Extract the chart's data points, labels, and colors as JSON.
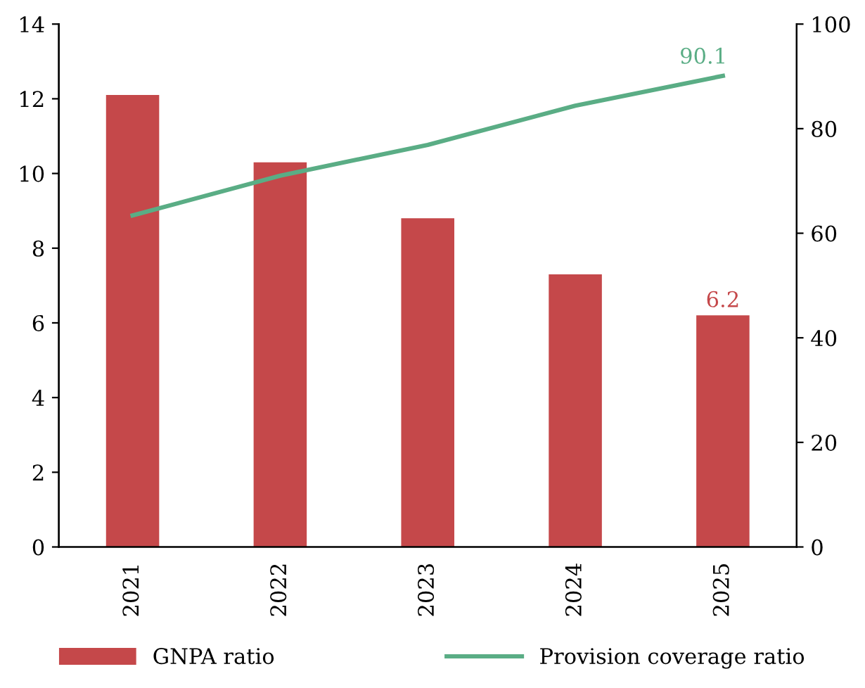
{
  "chart_data": {
    "type": "bar",
    "categories": [
      "2021",
      "2022",
      "2023",
      "2024",
      "2025"
    ],
    "series": [
      {
        "name": "GNPA ratio",
        "color": "#c5484a",
        "values": [
          12.1,
          10.3,
          8.8,
          7.3,
          6.2
        ],
        "value_labels": [
          null,
          null,
          null,
          null,
          "6.2"
        ]
      },
      {
        "name": "Provision coverage ratio",
        "type": "line",
        "axis": "y2",
        "color": "#5aad85",
        "values": [
          63.4,
          71.0,
          76.9,
          84.4,
          90.1
        ],
        "value_labels": [
          null,
          null,
          null,
          null,
          "90.1"
        ]
      }
    ],
    "ylim": [
      0,
      14
    ],
    "yticks": [
      0,
      2,
      4,
      6,
      8,
      10,
      12,
      14
    ],
    "y2lim": [
      0,
      100
    ],
    "y2ticks": [
      0,
      20,
      40,
      60,
      80,
      100
    ],
    "legend": "bottom",
    "grid": false,
    "marker": "none",
    "line_style": "solid"
  }
}
